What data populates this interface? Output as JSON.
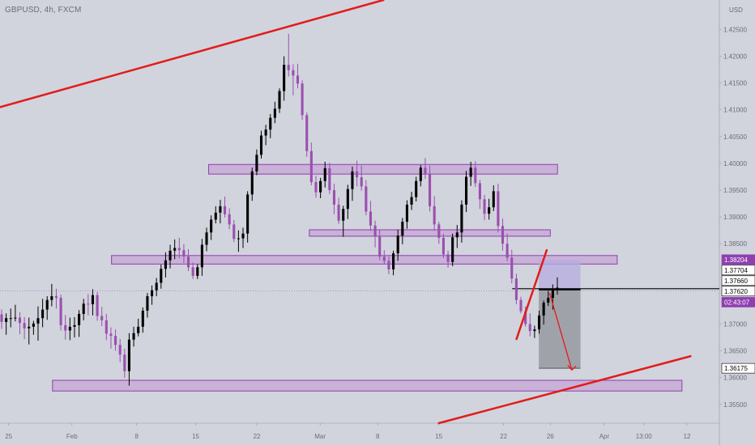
{
  "header": {
    "symbol": "GBPUSD, 4h, FXCM"
  },
  "colors": {
    "background": "#d1d4dc",
    "candle": "#000000",
    "candle_alt": "#9b4fb0",
    "zone_fill": "#c7a7d6",
    "zone_stroke": "#8e3fb0",
    "trend_line": "#e31b1b",
    "short_target_fill": "#8f9299",
    "short_stop_fill": "#b5aee0",
    "axis_text": "#6a6d78",
    "price_tag": "#8e3fb0"
  },
  "chart_data": {
    "type": "candlestick",
    "symbol": "GBPUSD",
    "timeframe": "4h",
    "broker": "FXCM",
    "currency": "USD",
    "y_ticks": [
      "1.42500",
      "1.42000",
      "1.41500",
      "1.41000",
      "1.40500",
      "1.40000",
      "1.39500",
      "1.39000",
      "1.38500",
      "1.37000",
      "1.36500",
      "1.36000",
      "1.35500"
    ],
    "x_ticks": [
      "25",
      "Feb",
      "8",
      "15",
      "22",
      "Mar",
      "8",
      "15",
      "22",
      "26",
      "Apr",
      "13:00",
      "12"
    ],
    "ylim": [
      1.3515,
      1.4305
    ],
    "price_tags": [
      {
        "label": "1.38204",
        "value": 1.38204,
        "style": "purple"
      },
      {
        "label": "1.37704",
        "value": 1.37704,
        "style": "white"
      },
      {
        "label": "1.37660",
        "value": 1.3766,
        "style": "black"
      },
      {
        "label": "1.37620",
        "value": 1.3762,
        "style": "white"
      },
      {
        "label": "02:43:07",
        "value": 1.37525,
        "style": "purple-small"
      },
      {
        "label": "1.36175",
        "value": 1.36175,
        "style": "black"
      }
    ],
    "zones": [
      {
        "from_x": 0.29,
        "to_x": 0.775,
        "low": 1.398,
        "high": 1.3998
      },
      {
        "from_x": 0.43,
        "to_x": 0.765,
        "low": 1.3864,
        "high": 1.3876
      },
      {
        "from_x": 0.155,
        "to_x": 0.858,
        "low": 1.3812,
        "high": 1.3828
      },
      {
        "from_x": 0.073,
        "to_x": 0.948,
        "low": 1.3575,
        "high": 1.3595
      }
    ],
    "trend_lines": [
      {
        "from": [
          0.0,
          1.4105
        ],
        "to": [
          0.533,
          1.4305
        ]
      },
      {
        "from": [
          0.61,
          1.3515
        ],
        "to": [
          0.96,
          1.364
        ]
      },
      {
        "from": [
          0.718,
          1.3672
        ],
        "to": [
          0.76,
          1.3838
        ]
      }
    ],
    "short_position": {
      "start_x": 0.749,
      "end_x": 0.807,
      "entry": 1.3766,
      "stop": 1.382,
      "target": 1.36175
    },
    "candles": [
      [
        1.3718,
        1.3727,
        1.3691,
        1.3704
      ],
      [
        1.3704,
        1.372,
        1.368,
        1.3711
      ],
      [
        1.3711,
        1.3729,
        1.3694,
        1.3711
      ],
      [
        1.3711,
        1.3736,
        1.3705,
        1.3712
      ],
      [
        1.3712,
        1.3722,
        1.3681,
        1.3702
      ],
      [
        1.3702,
        1.3713,
        1.3672,
        1.3692
      ],
      [
        1.3692,
        1.3712,
        1.3662,
        1.3695
      ],
      [
        1.3695,
        1.3706,
        1.368,
        1.3701
      ],
      [
        1.3701,
        1.3733,
        1.3669,
        1.3711
      ],
      [
        1.3711,
        1.3747,
        1.3694,
        1.3727
      ],
      [
        1.3727,
        1.3752,
        1.3708,
        1.3745
      ],
      [
        1.3745,
        1.3775,
        1.3733,
        1.3752
      ],
      [
        1.3752,
        1.3766,
        1.3729,
        1.3749
      ],
      [
        1.3749,
        1.3755,
        1.3688,
        1.3698
      ],
      [
        1.3698,
        1.3717,
        1.3671,
        1.3688
      ],
      [
        1.3688,
        1.3712,
        1.367,
        1.3695
      ],
      [
        1.3695,
        1.3713,
        1.3675,
        1.3698
      ],
      [
        1.3698,
        1.3726,
        1.3676,
        1.3719
      ],
      [
        1.3719,
        1.3747,
        1.3707,
        1.3738
      ],
      [
        1.3738,
        1.3756,
        1.3716,
        1.3737
      ],
      [
        1.3737,
        1.3765,
        1.3716,
        1.3754
      ],
      [
        1.3754,
        1.376,
        1.3706,
        1.3715
      ],
      [
        1.3715,
        1.3732,
        1.3696,
        1.3707
      ],
      [
        1.3707,
        1.3719,
        1.367,
        1.3682
      ],
      [
        1.3682,
        1.3694,
        1.3654,
        1.3678
      ],
      [
        1.3678,
        1.369,
        1.365,
        1.3661
      ],
      [
        1.3661,
        1.3672,
        1.3629,
        1.3643
      ],
      [
        1.3643,
        1.3654,
        1.36,
        1.3612
      ],
      [
        1.3612,
        1.3683,
        1.3585,
        1.3671
      ],
      [
        1.3671,
        1.3695,
        1.3658,
        1.3683
      ],
      [
        1.3683,
        1.371,
        1.3677,
        1.3695
      ],
      [
        1.3695,
        1.3731,
        1.3684,
        1.3725
      ],
      [
        1.3725,
        1.3758,
        1.3712,
        1.3752
      ],
      [
        1.3752,
        1.3772,
        1.3736,
        1.3763
      ],
      [
        1.3763,
        1.3786,
        1.3752,
        1.3777
      ],
      [
        1.3777,
        1.3811,
        1.3766,
        1.3803
      ],
      [
        1.3803,
        1.3834,
        1.3787,
        1.3819
      ],
      [
        1.3819,
        1.3848,
        1.3804,
        1.3837
      ],
      [
        1.3837,
        1.3858,
        1.3821,
        1.3842
      ],
      [
        1.3842,
        1.3861,
        1.3823,
        1.3838
      ],
      [
        1.3838,
        1.3849,
        1.3814,
        1.3826
      ],
      [
        1.3826,
        1.384,
        1.3799,
        1.3806
      ],
      [
        1.3806,
        1.3815,
        1.3784,
        1.379
      ],
      [
        1.379,
        1.3812,
        1.3784,
        1.3806
      ],
      [
        1.3806,
        1.3859,
        1.379,
        1.3848
      ],
      [
        1.3848,
        1.388,
        1.3836,
        1.3871
      ],
      [
        1.3871,
        1.3903,
        1.3857,
        1.3895
      ],
      [
        1.3895,
        1.392,
        1.3888,
        1.3908
      ],
      [
        1.3908,
        1.3932,
        1.3888,
        1.392
      ],
      [
        1.392,
        1.3938,
        1.3899,
        1.3905
      ],
      [
        1.3905,
        1.3916,
        1.3877,
        1.3886
      ],
      [
        1.3886,
        1.3894,
        1.3853,
        1.3859
      ],
      [
        1.3859,
        1.3875,
        1.3835,
        1.386
      ],
      [
        1.386,
        1.388,
        1.3842,
        1.3869
      ],
      [
        1.3869,
        1.3948,
        1.3852,
        1.3942
      ],
      [
        1.3942,
        1.3992,
        1.393,
        1.3985
      ],
      [
        1.3985,
        1.4026,
        1.3978,
        1.4016
      ],
      [
        1.4016,
        1.4061,
        1.4009,
        1.4052
      ],
      [
        1.4052,
        1.4072,
        1.4034,
        1.4063
      ],
      [
        1.4063,
        1.4092,
        1.4047,
        1.4085
      ],
      [
        1.4085,
        1.4115,
        1.4075,
        1.4102
      ],
      [
        1.4102,
        1.414,
        1.4094,
        1.4135
      ],
      [
        1.4135,
        1.42,
        1.4117,
        1.4184
      ],
      [
        1.4184,
        1.4242,
        1.4162,
        1.4174
      ],
      [
        1.4174,
        1.4185,
        1.4127,
        1.4164
      ],
      [
        1.4164,
        1.4186,
        1.414,
        1.4149
      ],
      [
        1.4149,
        1.4155,
        1.4081,
        1.409
      ],
      [
        1.409,
        1.4095,
        1.4012,
        1.4023
      ],
      [
        1.4023,
        1.4039,
        1.3959,
        1.3965
      ],
      [
        1.3965,
        1.3977,
        1.3936,
        1.3946
      ],
      [
        1.3946,
        1.3973,
        1.3935,
        1.3967
      ],
      [
        1.3967,
        1.4003,
        1.3955,
        1.3991
      ],
      [
        1.3991,
        1.4001,
        1.3943,
        1.395
      ],
      [
        1.395,
        1.3962,
        1.3905,
        1.3923
      ],
      [
        1.3923,
        1.3936,
        1.3887,
        1.3893
      ],
      [
        1.3893,
        1.3921,
        1.3863,
        1.3915
      ],
      [
        1.3915,
        1.396,
        1.3896,
        1.3952
      ],
      [
        1.3952,
        1.3994,
        1.393,
        1.3985
      ],
      [
        1.3985,
        1.4005,
        1.3957,
        1.3974
      ],
      [
        1.3974,
        1.3996,
        1.3949,
        1.3957
      ],
      [
        1.3957,
        1.3969,
        1.3903,
        1.391
      ],
      [
        1.391,
        1.393,
        1.3874,
        1.3884
      ],
      [
        1.3884,
        1.3893,
        1.3843,
        1.3863
      ],
      [
        1.3863,
        1.3877,
        1.3819,
        1.3826
      ],
      [
        1.3826,
        1.3838,
        1.3812,
        1.3818
      ],
      [
        1.3818,
        1.3826,
        1.3793,
        1.3802
      ],
      [
        1.3802,
        1.3837,
        1.3791,
        1.3832
      ],
      [
        1.3832,
        1.3876,
        1.3818,
        1.3865
      ],
      [
        1.3865,
        1.3898,
        1.3849,
        1.3891
      ],
      [
        1.3891,
        1.3931,
        1.3878,
        1.3923
      ],
      [
        1.3923,
        1.3947,
        1.3913,
        1.3937
      ],
      [
        1.3937,
        1.3975,
        1.3929,
        1.3967
      ],
      [
        1.3967,
        1.3997,
        1.3957,
        1.3992
      ],
      [
        1.3992,
        1.401,
        1.3971,
        1.3981
      ],
      [
        1.3981,
        1.3996,
        1.391,
        1.392
      ],
      [
        1.392,
        1.3939,
        1.3874,
        1.3886
      ],
      [
        1.3886,
        1.3891,
        1.385,
        1.3861
      ],
      [
        1.3861,
        1.3869,
        1.3823,
        1.383
      ],
      [
        1.383,
        1.3837,
        1.3805,
        1.3816
      ],
      [
        1.3816,
        1.3869,
        1.3808,
        1.3862
      ],
      [
        1.3862,
        1.3885,
        1.3842,
        1.3871
      ],
      [
        1.3871,
        1.3931,
        1.3852,
        1.3923
      ],
      [
        1.3923,
        1.3986,
        1.3909,
        1.3975
      ],
      [
        1.3975,
        1.4003,
        1.3958,
        1.3992
      ],
      [
        1.3992,
        1.4004,
        1.3956,
        1.3963
      ],
      [
        1.3963,
        1.3969,
        1.3915,
        1.3933
      ],
      [
        1.3933,
        1.3941,
        1.3894,
        1.3906
      ],
      [
        1.3906,
        1.3934,
        1.3895,
        1.3918
      ],
      [
        1.3918,
        1.3959,
        1.3911,
        1.3948
      ],
      [
        1.3948,
        1.3962,
        1.3871,
        1.3883
      ],
      [
        1.3883,
        1.3897,
        1.3837,
        1.385
      ],
      [
        1.385,
        1.3869,
        1.3817,
        1.3824
      ],
      [
        1.3824,
        1.3839,
        1.3776,
        1.3785
      ],
      [
        1.3785,
        1.3794,
        1.3737,
        1.3745
      ],
      [
        1.3745,
        1.3751,
        1.372,
        1.3724
      ],
      [
        1.3724,
        1.3733,
        1.3695,
        1.37
      ],
      [
        1.37,
        1.372,
        1.3677,
        1.3687
      ],
      [
        1.3687,
        1.3697,
        1.3674,
        1.369
      ],
      [
        1.369,
        1.3725,
        1.3682,
        1.3716
      ],
      [
        1.3716,
        1.3744,
        1.3699,
        1.374
      ],
      [
        1.374,
        1.3762,
        1.3734,
        1.3749
      ],
      [
        1.3749,
        1.3774,
        1.3727,
        1.3765
      ],
      [
        1.3765,
        1.3787,
        1.3755,
        1.3768
      ]
    ]
  }
}
